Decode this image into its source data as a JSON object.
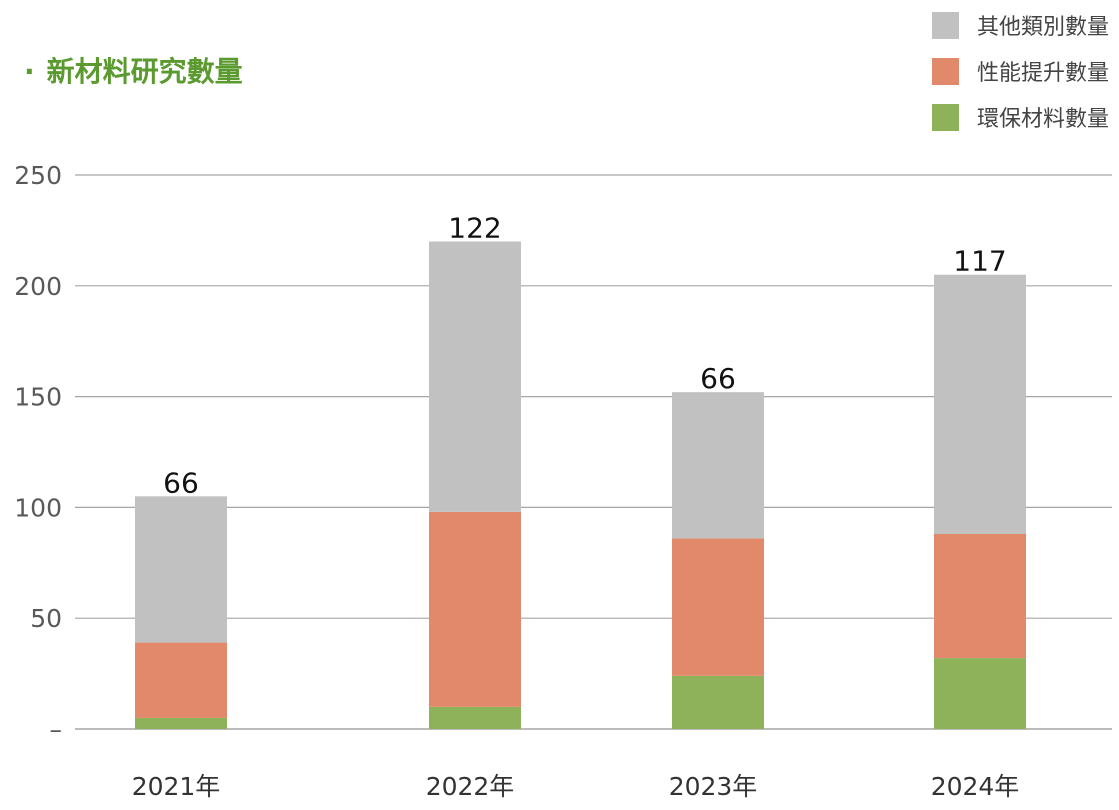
{
  "title": "新材料研究數量",
  "colors": {
    "title": "#5a9a2e",
    "other": "#c0c1c0",
    "performance": "#e1896a",
    "eco": "#8db25a",
    "grid": "#a6a6a6",
    "axis_text": "#595959"
  },
  "chart_data": {
    "type": "bar",
    "stacked": true,
    "categories": [
      "2021年",
      "2022年",
      "2023年",
      "2024年"
    ],
    "series": [
      {
        "name": "環保材料數量",
        "values": [
          5,
          10,
          24,
          32
        ],
        "color": "#8db25a"
      },
      {
        "name": "性能提升數量",
        "values": [
          34,
          88,
          62,
          56
        ],
        "color": "#e1896a"
      },
      {
        "name": "其他類別數量",
        "values": [
          66,
          122,
          66,
          117
        ],
        "color": "#c0c1c0"
      }
    ],
    "yticks": [
      "–",
      "50",
      "100",
      "150",
      "200",
      "250"
    ],
    "ylim": [
      0,
      250
    ],
    "grid": true,
    "legend": "top-right",
    "data_labels": true
  },
  "legend_order": [
    "其他類別數量",
    "性能提升數量",
    "環保材料數量"
  ]
}
